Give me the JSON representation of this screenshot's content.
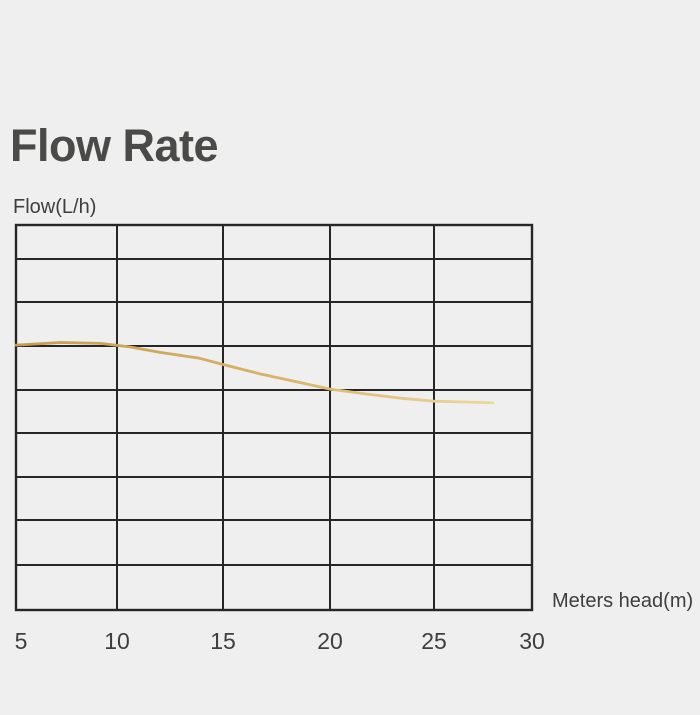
{
  "window": {
    "background_color": "#efefef"
  },
  "chart_data": {
    "type": "line",
    "title": "Flow Rate",
    "xlabel": "Meters head(m)",
    "ylabel": "Flow(L/h)",
    "xlim": [
      5,
      30
    ],
    "x_tick_labels": [
      "5",
      "10",
      "15",
      "20",
      "25",
      "30"
    ],
    "y_tick_labels": [],
    "y_axis_note": "y axis has no numeric labels; plot area is divided into 9 unlabeled horizontal gridline rows",
    "grid": "on",
    "legend": "none",
    "series": [
      {
        "name": "flow_vs_meters_head",
        "x_meters_head": [
          5.0,
          7.2,
          9.2,
          10.6,
          12.0,
          13.9,
          15.0,
          16.7,
          18.4,
          20.0,
          21.7,
          23.4,
          25.0,
          26.6,
          28.0
        ],
        "y_grid_rows_from_bottom": [
          6.02,
          6.08,
          6.06,
          5.98,
          5.86,
          5.72,
          5.58,
          5.37,
          5.19,
          5.02,
          4.91,
          4.81,
          4.74,
          4.72,
          4.7
        ],
        "stroke_color_start": "#c79b52",
        "stroke_color_mid": "#d9b368",
        "stroke_color_end": "#ecd99c"
      }
    ],
    "colors": {
      "grid": "#262626",
      "text": "#3e3e3c",
      "title": "#4a4a48"
    }
  }
}
